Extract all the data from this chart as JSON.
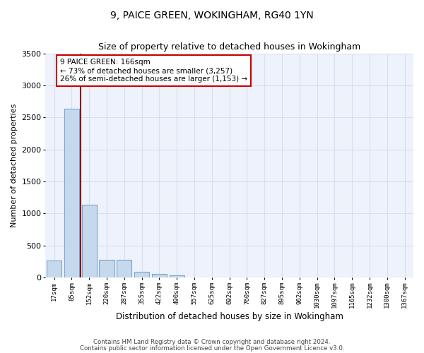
{
  "title": "9, PAICE GREEN, WOKINGHAM, RG40 1YN",
  "subtitle": "Size of property relative to detached houses in Wokingham",
  "xlabel": "Distribution of detached houses by size in Wokingham",
  "ylabel": "Number of detached properties",
  "bar_color": "#c5d8ec",
  "bar_edge_color": "#7aa8cc",
  "background_color": "#eef2fb",
  "grid_color": "#d8dff0",
  "categories": [
    "17sqm",
    "85sqm",
    "152sqm",
    "220sqm",
    "287sqm",
    "355sqm",
    "422sqm",
    "490sqm",
    "557sqm",
    "625sqm",
    "692sqm",
    "760sqm",
    "827sqm",
    "895sqm",
    "962sqm",
    "1030sqm",
    "1097sqm",
    "1165sqm",
    "1232sqm",
    "1300sqm",
    "1367sqm"
  ],
  "values": [
    270,
    2640,
    1140,
    280,
    280,
    95,
    55,
    35,
    0,
    0,
    0,
    0,
    0,
    0,
    0,
    0,
    0,
    0,
    0,
    0,
    0
  ],
  "ylim": [
    0,
    3500
  ],
  "yticks": [
    0,
    500,
    1000,
    1500,
    2000,
    2500,
    3000,
    3500
  ],
  "vline_x": 1.5,
  "annotation_text": "9 PAICE GREEN: 166sqm\n← 73% of detached houses are smaller (3,257)\n26% of semi-detached houses are larger (1,153) →",
  "annotation_box_color": "#ffffff",
  "annotation_box_edge": "#cc0000",
  "vline_color": "#8b0000",
  "footer1": "Contains HM Land Registry data © Crown copyright and database right 2024.",
  "footer2": "Contains public sector information licensed under the Open Government Licence v3.0."
}
